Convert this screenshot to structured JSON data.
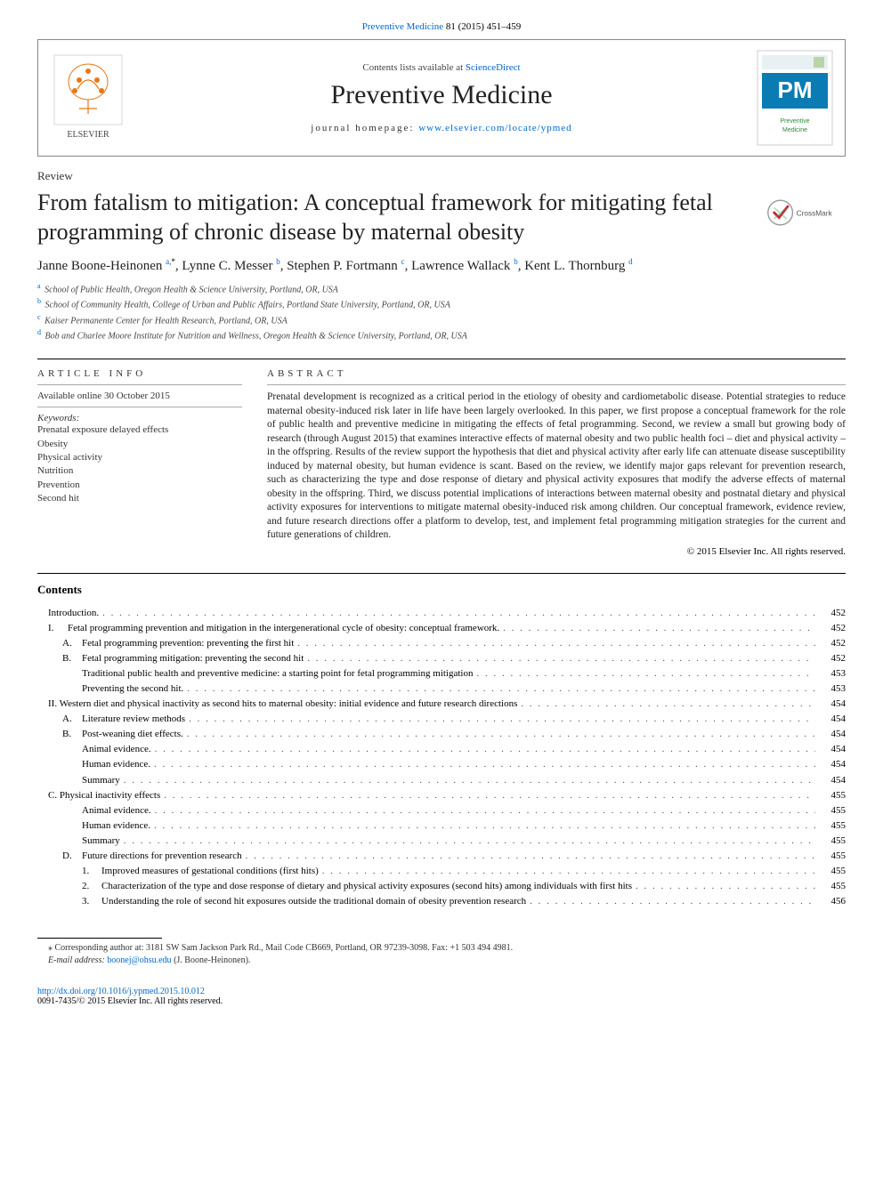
{
  "citation": {
    "journal": "Preventive Medicine",
    "vol_pages": "81 (2015) 451–459"
  },
  "header": {
    "lists_prefix": "Contents lists available at ",
    "lists_link": "ScienceDirect",
    "journal_name": "Preventive Medicine",
    "homepage_label": "journal homepage: ",
    "homepage_url": "www.elsevier.com/locate/ypmed"
  },
  "logos": {
    "elsevier_colors": {
      "tree": "#e67817",
      "text": "#333"
    },
    "pm_colors": {
      "bg": "#ffffff",
      "accent": "#0a7bb3",
      "text": "#0a7bb3",
      "green": "#2a8a3a"
    }
  },
  "article_type": "Review",
  "title": "From fatalism to mitigation: A conceptual framework for mitigating fetal programming of chronic disease by maternal obesity",
  "crossmark_label": "CrossMark",
  "authors": [
    {
      "name": "Janne Boone-Heinonen",
      "sup": "a,",
      "star": true
    },
    {
      "name": "Lynne C. Messer",
      "sup": "b"
    },
    {
      "name": "Stephen P. Fortmann",
      "sup": "c"
    },
    {
      "name": "Lawrence Wallack",
      "sup": "b"
    },
    {
      "name": "Kent L. Thornburg",
      "sup": "d"
    }
  ],
  "affiliations": [
    {
      "label": "a",
      "text": "School of Public Health, Oregon Health & Science University, Portland, OR, USA"
    },
    {
      "label": "b",
      "text": "School of Community Health, College of Urban and Public Affairs, Portland State University, Portland, OR, USA"
    },
    {
      "label": "c",
      "text": "Kaiser Permanente Center for Health Research, Portland, OR, USA"
    },
    {
      "label": "d",
      "text": "Bob and Charlee Moore Institute for Nutrition and Wellness, Oregon Health & Science University, Portland, OR, USA"
    }
  ],
  "info": {
    "head": "article info",
    "available": "Available online 30 October 2015",
    "kw_head": "Keywords:",
    "keywords": [
      "Prenatal exposure delayed effects",
      "Obesity",
      "Physical activity",
      "Nutrition",
      "Prevention",
      "Second hit"
    ]
  },
  "abstract": {
    "head": "abstract",
    "body": "Prenatal development is recognized as a critical period in the etiology of obesity and cardiometabolic disease. Potential strategies to reduce maternal obesity-induced risk later in life have been largely overlooked. In this paper, we first propose a conceptual framework for the role of public health and preventive medicine in mitigating the effects of fetal programming. Second, we review a small but growing body of research (through August 2015) that examines interactive effects of maternal obesity and two public health foci – diet and physical activity – in the offspring. Results of the review support the hypothesis that diet and physical activity after early life can attenuate disease susceptibility induced by maternal obesity, but human evidence is scant. Based on the review, we identify major gaps relevant for prevention research, such as characterizing the type and dose response of dietary and physical activity exposures that modify the adverse effects of maternal obesity in the offspring. Third, we discuss potential implications of interactions between maternal obesity and postnatal dietary and physical activity exposures for interventions to mitigate maternal obesity-induced risk among children. Our conceptual framework, evidence review, and future research directions offer a platform to develop, test, and implement fetal programming mitigation strategies for the current and future generations of children.",
    "copyright": "© 2015 Elsevier Inc. All rights reserved."
  },
  "contents_head": "Contents",
  "toc": [
    {
      "indent": 0,
      "label": "",
      "text": "Introduction.",
      "page": "452"
    },
    {
      "indent": 0,
      "label": "I.",
      "text": "Fetal programming prevention and mitigation in the intergenerational cycle of obesity: conceptual framework.",
      "page": "452"
    },
    {
      "indent": 1,
      "label": "A.",
      "text": "Fetal programming prevention: preventing the first hit",
      "page": "452"
    },
    {
      "indent": 1,
      "label": "B.",
      "text": "Fetal programming mitigation: preventing the second hit",
      "page": "452"
    },
    {
      "indent": 2,
      "label": "",
      "text": "Traditional public health and preventive medicine: a starting point for fetal programming mitigation",
      "page": "453"
    },
    {
      "indent": 2,
      "label": "",
      "text": "Preventing the second hit.",
      "page": "453"
    },
    {
      "indent": 0,
      "label": "",
      "text": "II. Western diet and physical inactivity as second hits to maternal obesity: initial evidence and future research directions",
      "page": "454"
    },
    {
      "indent": 1,
      "label": "A.",
      "text": "Literature review methods",
      "page": "454"
    },
    {
      "indent": 1,
      "label": "B.",
      "text": "Post-weaning diet effects.",
      "page": "454"
    },
    {
      "indent": 2,
      "label": "",
      "text": "Animal evidence.",
      "page": "454"
    },
    {
      "indent": 2,
      "label": "",
      "text": "Human evidence.",
      "page": "454"
    },
    {
      "indent": 2,
      "label": "",
      "text": "Summary",
      "page": "454"
    },
    {
      "indent": 0,
      "label": "",
      "text": "C. Physical inactivity effects",
      "page": "455"
    },
    {
      "indent": 2,
      "label": "",
      "text": "Animal evidence.",
      "page": "455"
    },
    {
      "indent": 2,
      "label": "",
      "text": "Human evidence.",
      "page": "455"
    },
    {
      "indent": 2,
      "label": "",
      "text": "Summary",
      "page": "455"
    },
    {
      "indent": 1,
      "label": "D.",
      "text": "Future directions for prevention research",
      "page": "455"
    },
    {
      "indent": 2,
      "label": "1.",
      "text": "Improved measures of gestational conditions (first hits)",
      "page": "455"
    },
    {
      "indent": 2,
      "label": "2.",
      "text": "Characterization of the type and dose response of dietary and physical activity exposures (second hits) among individuals with first hits",
      "page": "455"
    },
    {
      "indent": 2,
      "label": "3.",
      "text": "Understanding the role of second hit exposures outside the traditional domain of obesity prevention research",
      "page": "456"
    }
  ],
  "footnote": {
    "corr": "⁎  Corresponding author at: 3181 SW Sam Jackson Park Rd., Mail Code CB669, Portland, OR 97239-3098. Fax: +1 503 494 4981.",
    "email_label": "E-mail address: ",
    "email": "boonej@ohsu.edu",
    "email_suffix": " (J. Boone-Heinonen)."
  },
  "doi": {
    "link": "http://dx.doi.org/10.1016/j.ypmed.2015.10.012",
    "issn_line": "0091-7435/© 2015 Elsevier Inc. All rights reserved."
  },
  "colors": {
    "link": "#0066cc",
    "text": "#222222",
    "rule": "#000000"
  }
}
